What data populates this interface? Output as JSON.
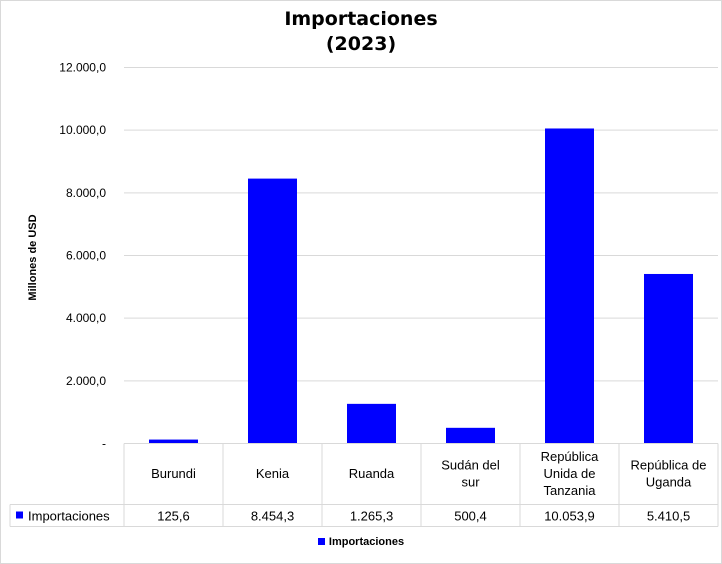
{
  "chart_data": {
    "type": "bar",
    "title": "Importaciones",
    "subtitle": "(2023)",
    "ylabel": "Millones de USD",
    "xlabel": "",
    "ylim": [
      0,
      12000
    ],
    "yticks": [
      "-",
      "2.000,0",
      "4.000,0",
      "6.000,0",
      "8.000,0",
      "10.000,0",
      "12.000,0"
    ],
    "ytick_values": [
      0,
      2000,
      4000,
      6000,
      8000,
      10000,
      12000
    ],
    "categories": [
      [
        "Burundi"
      ],
      [
        "Kenia"
      ],
      [
        "Ruanda"
      ],
      [
        "Sudán del",
        "sur"
      ],
      [
        "República",
        "Unida de",
        "Tanzania"
      ],
      [
        "República de",
        "Uganda"
      ]
    ],
    "series": [
      {
        "name": "Importaciones",
        "color": "#0000ff",
        "values": [
          125.6,
          8454.3,
          1265.3,
          500.4,
          10053.9,
          5410.5
        ],
        "labels": [
          "125,6",
          "8.454,3",
          "1.265,3",
          "500,4",
          "10.053,9",
          "5.410,5"
        ]
      }
    ],
    "grid": true,
    "legend": "bottom",
    "data_table": true
  }
}
